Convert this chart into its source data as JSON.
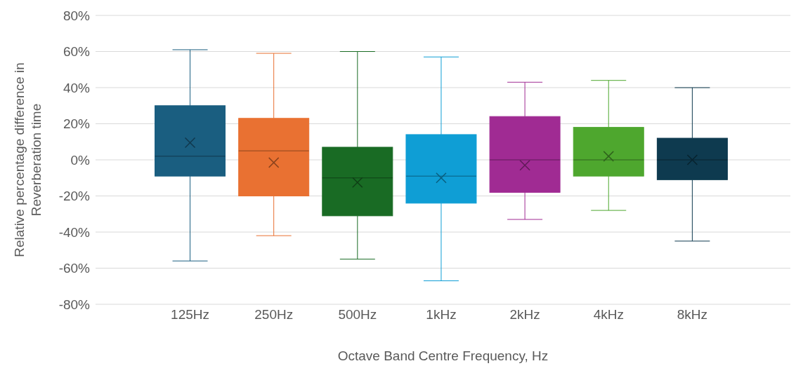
{
  "chart_data": {
    "type": "box",
    "xlabel": "Octave Band Centre Frequency, Hz",
    "ylabel": "Relative percentage difference in Reverberation time",
    "categories": [
      "125Hz",
      "250Hz",
      "500Hz",
      "1kHz",
      "2kHz",
      "4kHz",
      "8kHz"
    ],
    "colors": [
      "#1a5e80",
      "#e97132",
      "#196b24",
      "#0f9ed5",
      "#a02b93",
      "#4ea72e",
      "#0e3a4f"
    ],
    "boxes": [
      {
        "low": -56,
        "q1": -9,
        "median": 2,
        "q3": 30,
        "high": 61,
        "mean": 9.5
      },
      {
        "low": -42,
        "q1": -20,
        "median": 5,
        "q3": 23,
        "high": 59,
        "mean": -1.5
      },
      {
        "low": -55,
        "q1": -31,
        "median": -10,
        "q3": 7,
        "high": 60,
        "mean": -12.5
      },
      {
        "low": -67,
        "q1": -24,
        "median": -9,
        "q3": 14,
        "high": 57,
        "mean": -10
      },
      {
        "low": -33,
        "q1": -18,
        "median": 0,
        "q3": 24,
        "high": 43,
        "mean": -3
      },
      {
        "low": -28,
        "q1": -9,
        "median": 0,
        "q3": 18,
        "high": 44,
        "mean": 2
      },
      {
        "low": -45,
        "q1": -11,
        "median": 0,
        "q3": 12,
        "high": 40,
        "mean": 0
      }
    ],
    "ylim": [
      -80,
      80
    ],
    "yticks": [
      {
        "value": -80,
        "label": "-80%"
      },
      {
        "value": -60,
        "label": "-60%"
      },
      {
        "value": -40,
        "label": "-40%"
      },
      {
        "value": -20,
        "label": "-20%"
      },
      {
        "value": 0,
        "label": "0%"
      },
      {
        "value": 20,
        "label": "20%"
      },
      {
        "value": 40,
        "label": "40%"
      },
      {
        "value": 60,
        "label": "60%"
      },
      {
        "value": 80,
        "label": "80%"
      }
    ],
    "grid": "y"
  }
}
